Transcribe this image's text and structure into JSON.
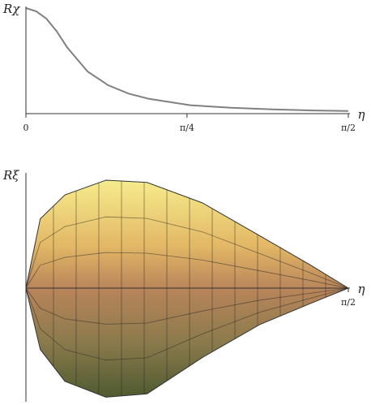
{
  "chart_data": [
    {
      "type": "line",
      "y_label": "Rχ",
      "x_label": "η",
      "x": [
        0,
        0.05,
        0.1,
        0.15,
        0.2,
        0.3,
        0.4,
        0.5,
        0.6,
        0.8,
        1.0,
        1.2,
        1.4,
        1.571
      ],
      "series": [
        {
          "values": [
            1.0,
            0.97,
            0.9,
            0.78,
            0.63,
            0.4,
            0.27,
            0.19,
            0.14,
            0.08,
            0.055,
            0.04,
            0.03,
            0.025
          ],
          "color": "#808080"
        }
      ],
      "xlim": [
        0,
        1.571
      ],
      "ylim": [
        0,
        1.0
      ],
      "xticks": [
        0,
        {
          "value": 0.785,
          "label": "π/4"
        },
        {
          "value": 1.571,
          "label": "π/2"
        }
      ]
    },
    {
      "type": "surface",
      "y_label": "Rξ",
      "x_label": "η",
      "x": [
        0,
        0.07,
        0.19,
        0.39,
        0.59,
        0.86,
        1.14,
        1.38,
        1.571
      ],
      "series": [
        {
          "values": [
            0,
            0.61,
            0.82,
            0.95,
            0.93,
            0.75,
            0.46,
            0.21,
            0
          ],
          "color": "#f2e27a"
        },
        {
          "values": [
            0,
            -0.54,
            -0.82,
            -0.96,
            -0.93,
            -0.61,
            -0.32,
            -0.14,
            0
          ],
          "color": "#4d5a2e"
        }
      ],
      "xlim": [
        0,
        1.571
      ],
      "ylim": [
        -1.0,
        1.0
      ],
      "xticks": [
        {
          "value": 1.571,
          "label": "π/2"
        }
      ]
    }
  ]
}
